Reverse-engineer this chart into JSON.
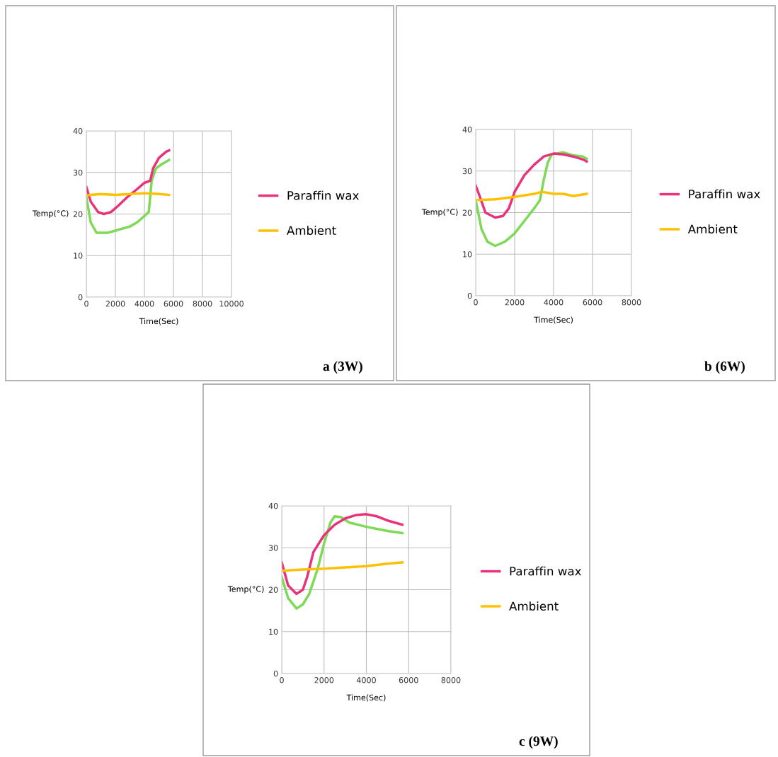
{
  "chart_data": [
    {
      "type": "line",
      "xlabel": "Time(Sec)",
      "ylabel": "Temp(°C)",
      "xlim": [
        0,
        10000
      ],
      "ylim": [
        0,
        40
      ],
      "xticks": [
        0,
        2000,
        4000,
        6000,
        8000,
        10000
      ],
      "yticks": [
        0,
        10,
        20,
        30,
        40
      ],
      "grid": true,
      "legend": "right",
      "annotations": [
        "a (3W)"
      ],
      "series": [
        {
          "color": "#7ed957",
          "x": [
            0,
            300,
            700,
            1500,
            2000,
            3000,
            3500,
            4000,
            4300,
            4500,
            4800,
            5200,
            5700
          ],
          "values": [
            24,
            18,
            15.5,
            15.5,
            16,
            17,
            18,
            19.5,
            20.5,
            28,
            31,
            32,
            33
          ]
        },
        {
          "name": "Paraffin wax",
          "color": "#e8337a",
          "x": [
            0,
            300,
            800,
            1200,
            1700,
            2200,
            2800,
            3500,
            4000,
            4400,
            4600,
            5000,
            5500,
            5700
          ],
          "values": [
            26.5,
            23,
            20.5,
            20,
            20.5,
            22,
            24,
            26,
            27.5,
            28,
            31,
            33.5,
            35,
            35.3
          ]
        },
        {
          "name": "Ambient",
          "color": "#ffc000",
          "x": [
            0,
            1000,
            2000,
            3000,
            4000,
            5000,
            5700
          ],
          "values": [
            24.5,
            24.8,
            24.6,
            24.8,
            25,
            24.8,
            24.6
          ]
        }
      ]
    },
    {
      "type": "line",
      "xlabel": "Time(Sec)",
      "ylabel": "Temp(°C)",
      "xlim": [
        0,
        8000
      ],
      "ylim": [
        0,
        40
      ],
      "xticks": [
        0,
        2000,
        4000,
        6000,
        8000
      ],
      "yticks": [
        0,
        10,
        20,
        30,
        40
      ],
      "grid": true,
      "legend": "right",
      "annotations": [
        "b (6W)"
      ],
      "series": [
        {
          "color": "#7ed957",
          "x": [
            0,
            300,
            600,
            1000,
            1500,
            2000,
            2500,
            3000,
            3300,
            3500,
            3700,
            3900,
            4500,
            5000,
            5500,
            5700
          ],
          "values": [
            23,
            16,
            13,
            12,
            13,
            15,
            18,
            21,
            23,
            28,
            32,
            34,
            34.5,
            33.8,
            33.5,
            33
          ]
        },
        {
          "name": "Paraffin wax",
          "color": "#e8337a",
          "x": [
            0,
            200,
            500,
            1000,
            1400,
            1700,
            2000,
            2500,
            3000,
            3500,
            4000,
            4500,
            5000,
            5500,
            5700
          ],
          "values": [
            26.5,
            24,
            20,
            18.8,
            19.2,
            21,
            25,
            29,
            31.5,
            33.5,
            34.2,
            34,
            33.5,
            32.8,
            32.3
          ]
        },
        {
          "name": "Ambient",
          "color": "#ffc000",
          "x": [
            0,
            1000,
            2000,
            3000,
            3400,
            4000,
            4500,
            5000,
            5700
          ],
          "values": [
            23,
            23.2,
            23.8,
            24.5,
            25,
            24.5,
            24.5,
            24,
            24.5
          ]
        }
      ]
    },
    {
      "type": "line",
      "xlabel": "Time(Sec)",
      "ylabel": "Temp(°C)",
      "xlim": [
        0,
        8000
      ],
      "ylim": [
        0,
        40
      ],
      "xticks": [
        0,
        2000,
        4000,
        6000,
        8000
      ],
      "yticks": [
        0,
        10,
        20,
        30,
        40
      ],
      "grid": true,
      "legend": "right",
      "annotations": [
        "c (9W)"
      ],
      "series": [
        {
          "color": "#7ed957",
          "x": [
            0,
            300,
            700,
            1000,
            1300,
            1700,
            2000,
            2300,
            2500,
            2800,
            3200,
            4000,
            5000,
            5700
          ],
          "values": [
            23,
            18,
            15.5,
            16.5,
            19,
            25,
            31,
            36,
            37.5,
            37.3,
            36,
            35,
            34,
            33.5
          ]
        },
        {
          "name": "Paraffin wax",
          "color": "#e8337a",
          "x": [
            0,
            300,
            700,
            1000,
            1200,
            1500,
            2000,
            2500,
            3000,
            3500,
            4000,
            4500,
            5000,
            5700
          ],
          "values": [
            26.5,
            21,
            19,
            20,
            23,
            29,
            33,
            35.5,
            37,
            37.8,
            38,
            37.5,
            36.5,
            35.5
          ]
        },
        {
          "name": "Ambient",
          "color": "#ffc000",
          "x": [
            0,
            1000,
            2000,
            3000,
            4000,
            5000,
            5700
          ],
          "values": [
            24.5,
            24.8,
            25,
            25.3,
            25.6,
            26.2,
            26.5
          ]
        }
      ]
    }
  ]
}
